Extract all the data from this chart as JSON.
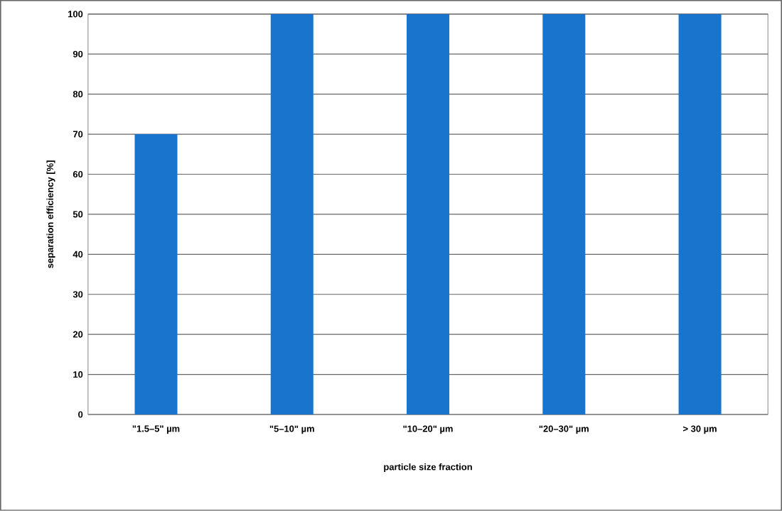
{
  "chart_data": {
    "type": "bar",
    "xlabel": "particle size fraction",
    "ylabel": "separation efficiency [%]",
    "categories": [
      "\"1.5–5\" µm",
      "\"5–10\" µm",
      "\"10–20\" µm",
      "\"20–30\" µm",
      "> 30 µm"
    ],
    "values": [
      70,
      100,
      100,
      100,
      100
    ],
    "color": "#1874cd",
    "ylim": [
      0,
      100
    ],
    "yticks": [
      0,
      10,
      20,
      30,
      40,
      50,
      60,
      70,
      80,
      90,
      100
    ],
    "grid": "y"
  }
}
